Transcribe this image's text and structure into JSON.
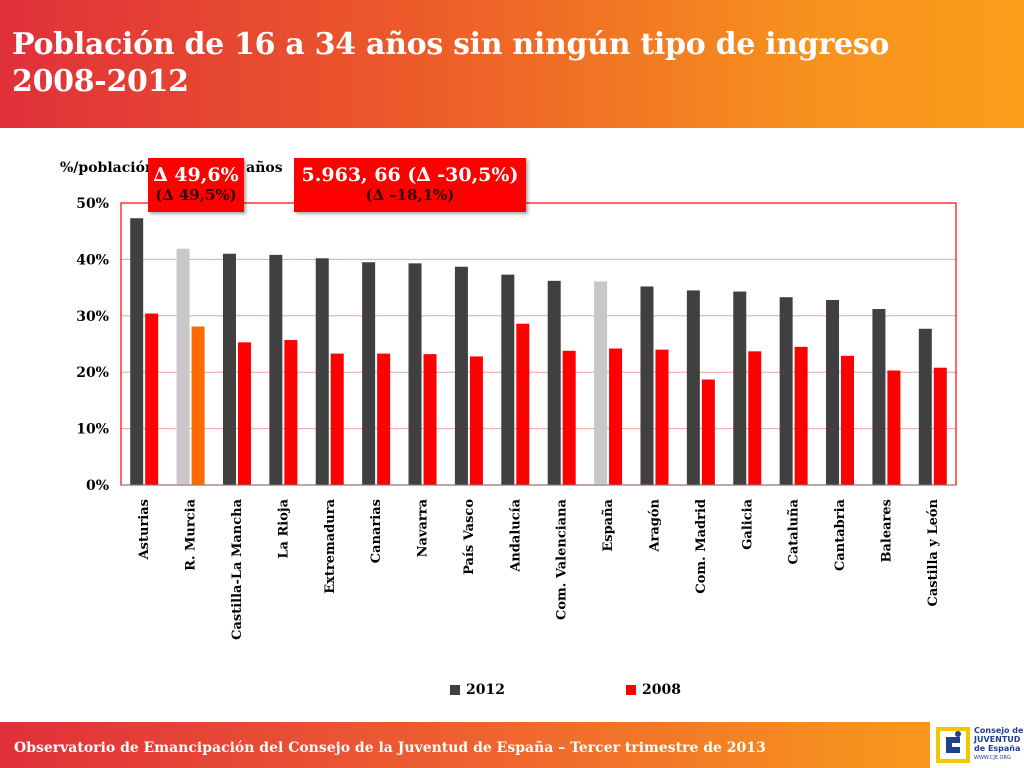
{
  "header": {
    "title": "Población de 16 a 34 años sin ningún tipo de ingreso\n2008-2012"
  },
  "chart_data": {
    "type": "bar",
    "ylabel": "%/población de 16 a 34 años",
    "ylim": [
      0,
      50
    ],
    "yticks": [
      "0%",
      "10%",
      "20%",
      "30%",
      "40%",
      "50%"
    ],
    "grid": true,
    "legend_position": "bottom",
    "categories": [
      "Asturias",
      "R. Murcia",
      "Castilla-La Mancha",
      "La Rioja",
      "Extremadura",
      "Canarias",
      "Navarra",
      "País Vasco",
      "Andalucía",
      "Com. Valenciana",
      "España",
      "Aragón",
      "Com. Madrid",
      "Galicia",
      "Cataluña",
      "Cantabria",
      "Baleares",
      "Castilla y León"
    ],
    "series": [
      {
        "name": "2012",
        "color": "#404040",
        "values": [
          47.3,
          41.9,
          41.0,
          40.8,
          40.2,
          39.5,
          39.3,
          38.7,
          37.3,
          36.2,
          36.1,
          35.2,
          34.5,
          34.3,
          33.3,
          32.8,
          31.2,
          27.7
        ]
      },
      {
        "name": "2008",
        "color": "#ff0000",
        "values": [
          30.4,
          28.1,
          25.3,
          25.7,
          23.3,
          23.3,
          23.2,
          22.8,
          28.6,
          23.8,
          24.2,
          24.0,
          18.7,
          23.7,
          24.5,
          22.9,
          20.3,
          20.8
        ]
      }
    ],
    "highlights": [
      {
        "category": "R. Murcia",
        "colors": [
          "#c8c8c8",
          "#ff6a00"
        ]
      },
      {
        "category": "España",
        "colors": [
          "#c8c8c8",
          "#ff0000"
        ]
      }
    ],
    "annotations": [
      {
        "line1": "∆ 49,6%",
        "line2": "(∆ 49,5%)"
      },
      {
        "line1": "5.963, 66 (∆ -30,5%)",
        "line2": "(∆ –18,1%)"
      }
    ]
  },
  "footer": {
    "text": "Observatorio de Emancipación del Consejo de la Juventud de España – Tercer trimestre de 2013",
    "logo_lines": [
      "Consejo de la",
      "JUVENTUD",
      "de España"
    ],
    "logo_url": "WWW.CJE.ORG"
  }
}
